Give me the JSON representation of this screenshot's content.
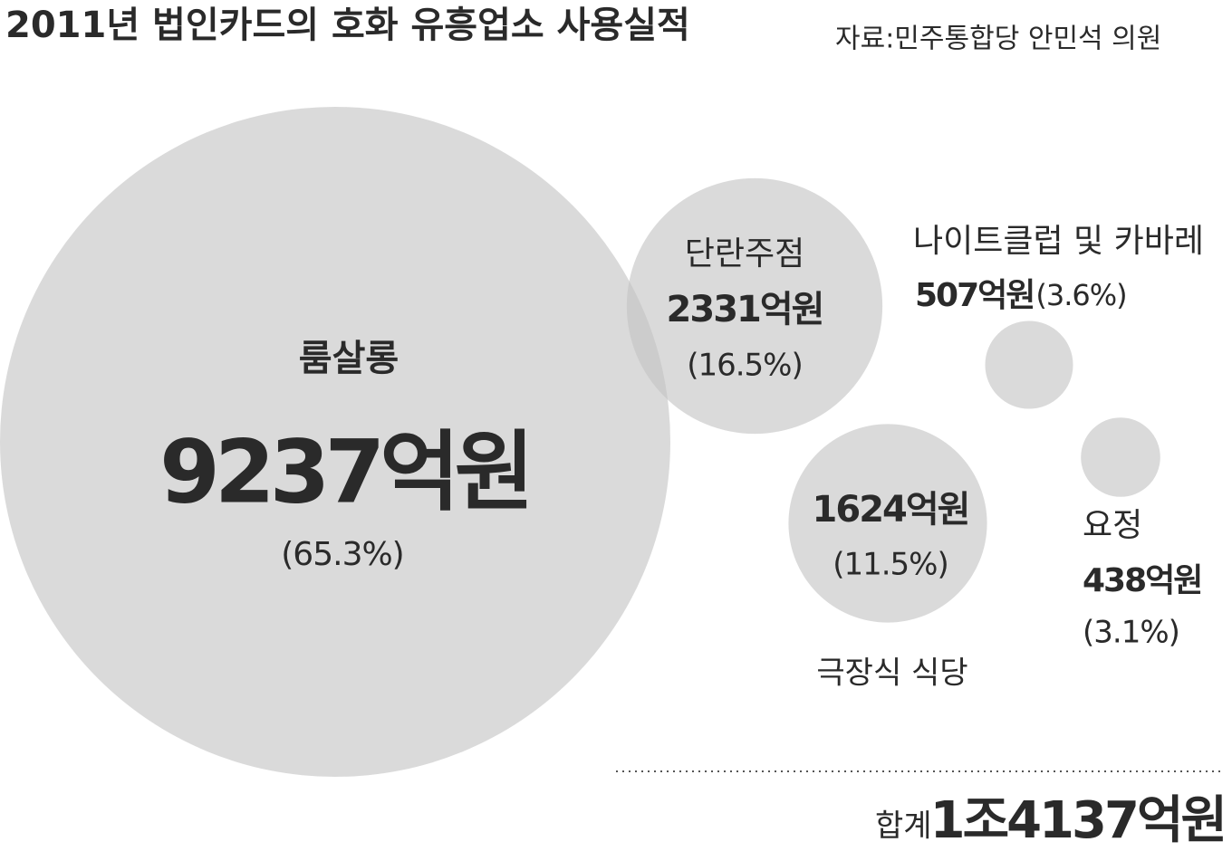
{
  "chart_data": {
    "type": "bubble",
    "title": "2011년 법인카드의 호화 유흥업소 사용실적",
    "source": "자료:민주통합당 안민석 의원",
    "categories": [
      "룸살롱",
      "단란주점",
      "극장식 식당",
      "나이트클럽 및 카바레",
      "요정"
    ],
    "values": [
      9237,
      2331,
      1624,
      507,
      438
    ],
    "value_labels": [
      "9237억원",
      "2331억원",
      "1624억원",
      "507억원",
      "438억원"
    ],
    "shares": [
      65.3,
      16.5,
      11.5,
      3.6,
      3.1
    ],
    "share_labels": [
      "(65.3%)",
      "(16.5%)",
      "(11.5%)",
      "(3.6%)",
      "(3.1%)"
    ],
    "color": "#c4c4c4",
    "total": {
      "label": "합계",
      "value": 14137,
      "value_label": "1조4137억원"
    }
  }
}
